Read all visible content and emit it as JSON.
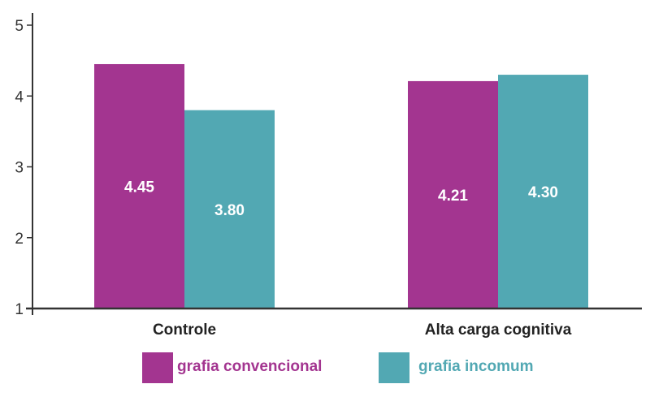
{
  "chart_data": {
    "type": "bar",
    "title": "",
    "xlabel": "",
    "ylabel": "",
    "ylim": [
      1,
      5
    ],
    "yticks": [
      1,
      2,
      3,
      4,
      5
    ],
    "grid": false,
    "legend_position": "bottom",
    "categories": [
      "Controle",
      "Alta carga cognitiva"
    ],
    "series": [
      {
        "name": "grafia convencional",
        "color": "#a33590",
        "values": [
          4.45,
          4.21
        ],
        "labels": [
          "4.45",
          "4.21"
        ]
      },
      {
        "name": "grafia incomum",
        "color": "#52a8b3",
        "values": [
          3.8,
          4.3
        ],
        "labels": [
          "3.80",
          "4.30"
        ]
      }
    ],
    "axis_color": "#333333",
    "label_color": "#ffffff"
  }
}
